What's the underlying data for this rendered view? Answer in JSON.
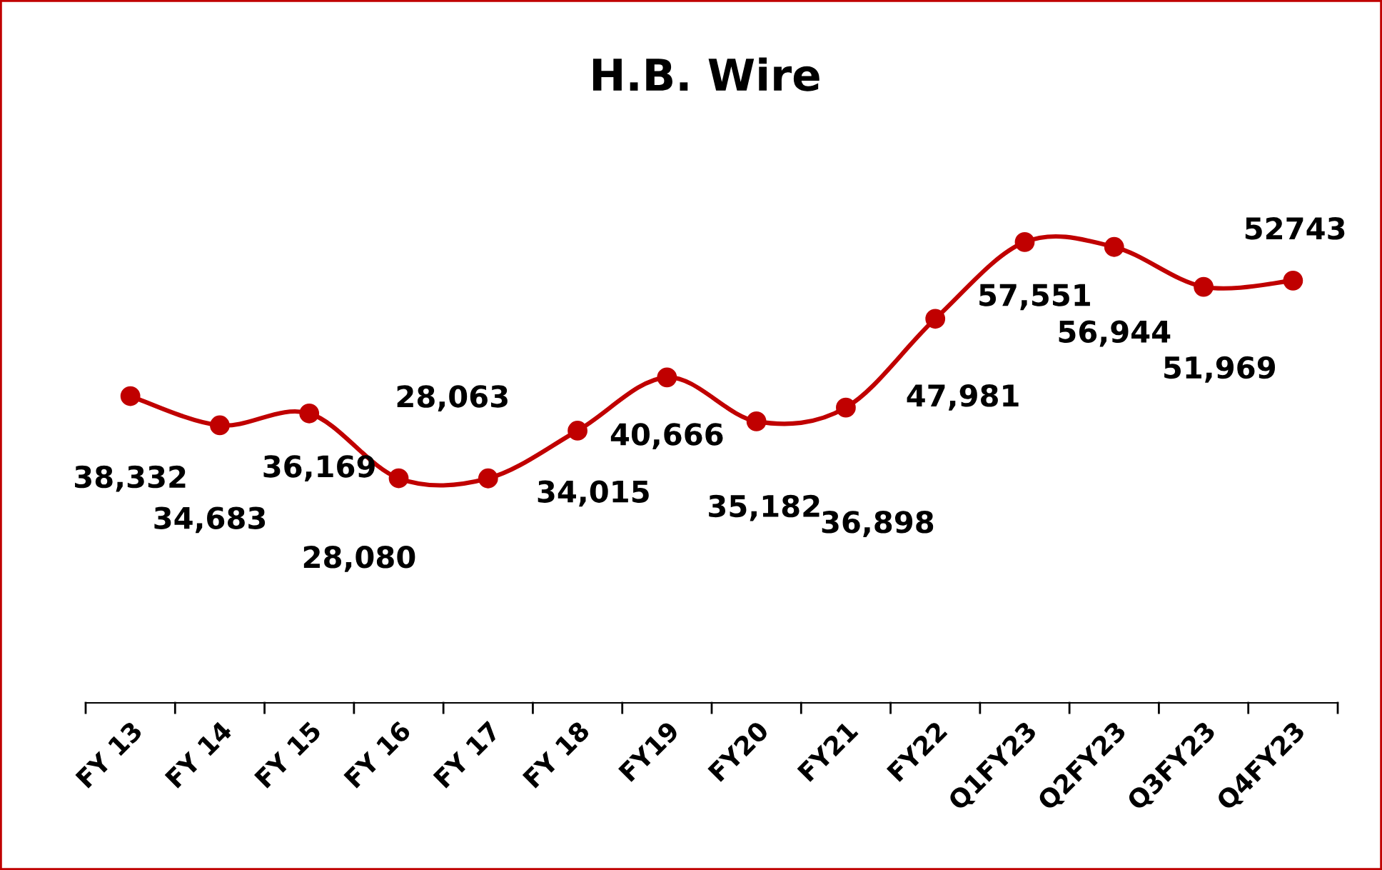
{
  "chart_data": {
    "type": "line",
    "title": "H.B. Wire",
    "categories": [
      "FY 13",
      "FY 14",
      "FY 15",
      "FY 16",
      "FY 17",
      "FY 18",
      "FY19",
      "FY20",
      "FY21",
      "FY22",
      "Q1FY23",
      "Q2FY23",
      "Q3FY23",
      "Q4FY23"
    ],
    "values": [
      38332,
      34683,
      36169,
      28080,
      28063,
      34015,
      40666,
      35182,
      36898,
      47981,
      57551,
      56944,
      51969,
      52743
    ],
    "value_labels": [
      "38,332",
      "34,683",
      "36,169",
      "28,080",
      "28,063",
      "34,015",
      "40,666",
      "35,182",
      "36,898",
      "47,981",
      "57,551",
      "56,944",
      "51,969",
      "52743"
    ],
    "color": "#c00000",
    "marker": "circle",
    "tick_labels": "x",
    "grid": false,
    "legend": false
  }
}
